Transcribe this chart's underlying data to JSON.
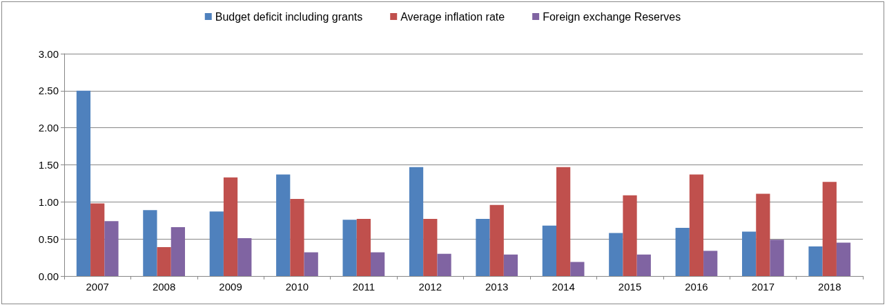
{
  "chart_data": {
    "type": "bar",
    "categories": [
      "2007",
      "2008",
      "2009",
      "2010",
      "2011",
      "2012",
      "2013",
      "2014",
      "2015",
      "2016",
      "2017",
      "2018"
    ],
    "series": [
      {
        "name": "Budget deficit including grants",
        "color": "#4f81bd",
        "values": [
          2.5,
          0.89,
          0.87,
          1.37,
          0.76,
          1.47,
          0.77,
          0.68,
          0.58,
          0.65,
          0.6,
          0.4
        ]
      },
      {
        "name": "Average inflation rate",
        "color": "#c0504d",
        "values": [
          0.98,
          0.39,
          1.33,
          1.04,
          0.77,
          0.77,
          0.96,
          1.47,
          1.09,
          1.37,
          1.11,
          1.27
        ]
      },
      {
        "name": "Foreign exchange Reserves",
        "color": "#8064a2",
        "values": [
          0.74,
          0.66,
          0.51,
          0.32,
          0.32,
          0.3,
          0.29,
          0.19,
          0.29,
          0.34,
          0.49,
          0.45
        ]
      }
    ],
    "ylim": [
      0,
      3
    ],
    "yticks": [
      {
        "value": 0,
        "label": "0.00"
      },
      {
        "value": 0.5,
        "label": "0.50"
      },
      {
        "value": 1,
        "label": "1.00"
      },
      {
        "value": 1.5,
        "label": "1.50"
      },
      {
        "value": 2,
        "label": "2.00"
      },
      {
        "value": 2.5,
        "label": "2.50"
      },
      {
        "value": 3,
        "label": "3.00"
      }
    ],
    "grid": "y",
    "legend": "top"
  }
}
